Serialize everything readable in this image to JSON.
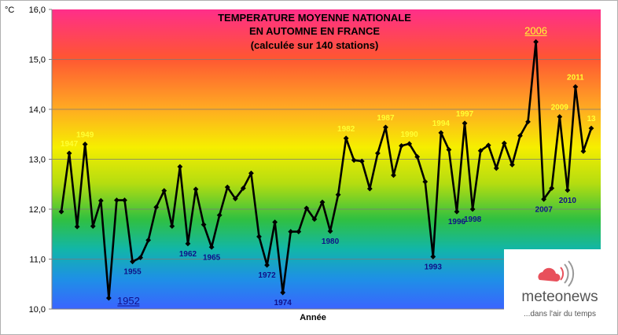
{
  "chart_data": {
    "type": "line",
    "title_lines": [
      "TEMPERATURE MOYENNE NATIONALE",
      "EN AUTOMNE EN FRANCE",
      "(calculée sur 140 stations)"
    ],
    "ylabel": "°C",
    "xlabel": "Année",
    "ylim": [
      10.0,
      16.0
    ],
    "yticks": [
      "10,0",
      "11,0",
      "12,0",
      "13,0",
      "14,0",
      "15,0",
      "16,0"
    ],
    "grid": true,
    "x": [
      1946,
      1947,
      1948,
      1949,
      1950,
      1951,
      1952,
      1953,
      1954,
      1955,
      1956,
      1957,
      1958,
      1959,
      1960,
      1961,
      1962,
      1963,
      1964,
      1965,
      1966,
      1967,
      1968,
      1969,
      1970,
      1971,
      1972,
      1973,
      1974,
      1975,
      1976,
      1977,
      1978,
      1979,
      1980,
      1981,
      1982,
      1983,
      1984,
      1985,
      1986,
      1987,
      1988,
      1989,
      1990,
      1991,
      1992,
      1993,
      1994,
      1995,
      1996,
      1997,
      1998,
      1999,
      2000,
      2001,
      2002,
      2003,
      2004,
      2005,
      2006,
      2007,
      2008,
      2009,
      2010,
      2011,
      2012,
      2013
    ],
    "series": [
      {
        "values": [
          11.95,
          13.12,
          11.65,
          13.3,
          11.66,
          12.17,
          10.22,
          12.18,
          12.18,
          10.95,
          11.03,
          11.38,
          12.04,
          12.37,
          11.66,
          12.85,
          11.31,
          12.4,
          11.69,
          11.24,
          11.88,
          12.44,
          12.21,
          12.42,
          12.72,
          11.45,
          10.88,
          11.74,
          10.33,
          11.55,
          11.55,
          12.02,
          11.8,
          12.14,
          11.56,
          12.29,
          13.42,
          12.98,
          12.96,
          12.41,
          13.12,
          13.64,
          12.68,
          13.27,
          13.31,
          13.05,
          12.55,
          11.05,
          13.53,
          13.19,
          11.95,
          13.72,
          12.0,
          13.17,
          13.28,
          12.82,
          13.32,
          12.89,
          13.47,
          13.75,
          15.35,
          12.2,
          12.42,
          13.85,
          12.38,
          14.45,
          13.16,
          13.62
        ]
      }
    ],
    "annotations_high": [
      {
        "label": "1947",
        "year": 1947
      },
      {
        "label": "1949",
        "year": 1949
      },
      {
        "label": "1982",
        "year": 1982
      },
      {
        "label": "1987",
        "year": 1987
      },
      {
        "label": "1990",
        "year": 1990
      },
      {
        "label": "1994",
        "year": 1994
      },
      {
        "label": "1997",
        "year": 1997
      },
      {
        "label": "2009",
        "year": 2009
      },
      {
        "label": "2011",
        "year": 2011
      },
      {
        "label": "13",
        "year": 2013
      }
    ],
    "annotations_low": [
      {
        "label": "1955",
        "year": 1955
      },
      {
        "label": "1962",
        "year": 1962
      },
      {
        "label": "1965",
        "year": 1965
      },
      {
        "label": "1972",
        "year": 1972
      },
      {
        "label": "1974",
        "year": 1974
      },
      {
        "label": "1980",
        "year": 1980
      },
      {
        "label": "1993",
        "year": 1993
      },
      {
        "label": "1996",
        "year": 1996
      },
      {
        "label": "1998",
        "year": 1998
      },
      {
        "label": "2007",
        "year": 2007
      },
      {
        "label": "2010",
        "year": 2010
      }
    ],
    "record_high": {
      "label": "2006",
      "year": 2006
    },
    "record_low": {
      "label": "1952",
      "year": 1952
    }
  },
  "logo": {
    "name": "meteonews",
    "tagline": "...dans l'air du temps"
  },
  "colors": {
    "line": "#000000",
    "high_label": "#ffff33",
    "low_label": "#101088",
    "record_high": "#ffff33",
    "record_low": "#101088"
  }
}
